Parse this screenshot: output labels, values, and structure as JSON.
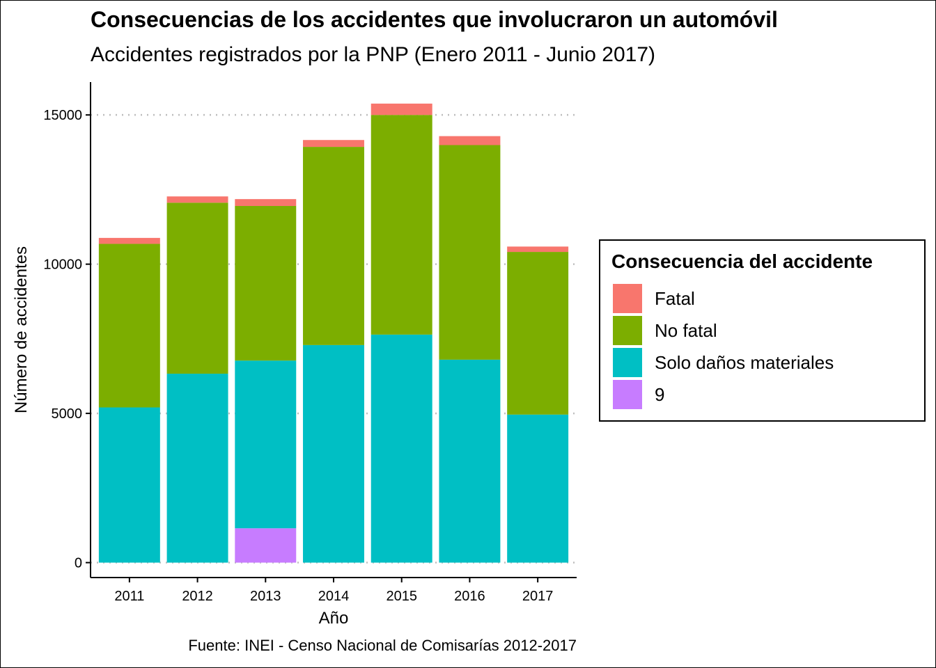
{
  "chart_data": {
    "type": "bar",
    "stacked": true,
    "title": "Consecuencias de los accidentes que involucraron un automóvil",
    "subtitle": "Accidentes registrados por la PNP (Enero 2011 - Junio 2017)",
    "xlabel": "Año",
    "ylabel": "Número de accidentes",
    "caption": "Fuente: INEI - Censo Nacional de Comisarías 2012-2017",
    "categories": [
      "2011",
      "2012",
      "2013",
      "2014",
      "2015",
      "2016",
      "2017"
    ],
    "ylim": [
      -500,
      16100
    ],
    "yticks": [
      0,
      5000,
      10000,
      15000
    ],
    "ytick_labels": [
      "0",
      "5000",
      "10000",
      "15000"
    ],
    "legend_title": "Consecuencia del accidente",
    "legend_position": "right",
    "series": [
      {
        "name": "9",
        "color": "#C77CFF",
        "values": [
          0,
          0,
          1150,
          0,
          0,
          0,
          0
        ]
      },
      {
        "name": "Solo daños materiales",
        "color": "#00BFC4",
        "values": [
          5200,
          6330,
          5620,
          7290,
          7640,
          6800,
          4960
        ]
      },
      {
        "name": "No fatal",
        "color": "#7CAE00",
        "values": [
          5480,
          5730,
          5180,
          6640,
          7360,
          7190,
          5450
        ]
      },
      {
        "name": "Fatal",
        "color": "#F8766D",
        "values": [
          200,
          210,
          230,
          230,
          380,
          300,
          180
        ]
      }
    ],
    "legend_order": [
      "Fatal",
      "No fatal",
      "Solo daños materiales",
      "9"
    ]
  }
}
